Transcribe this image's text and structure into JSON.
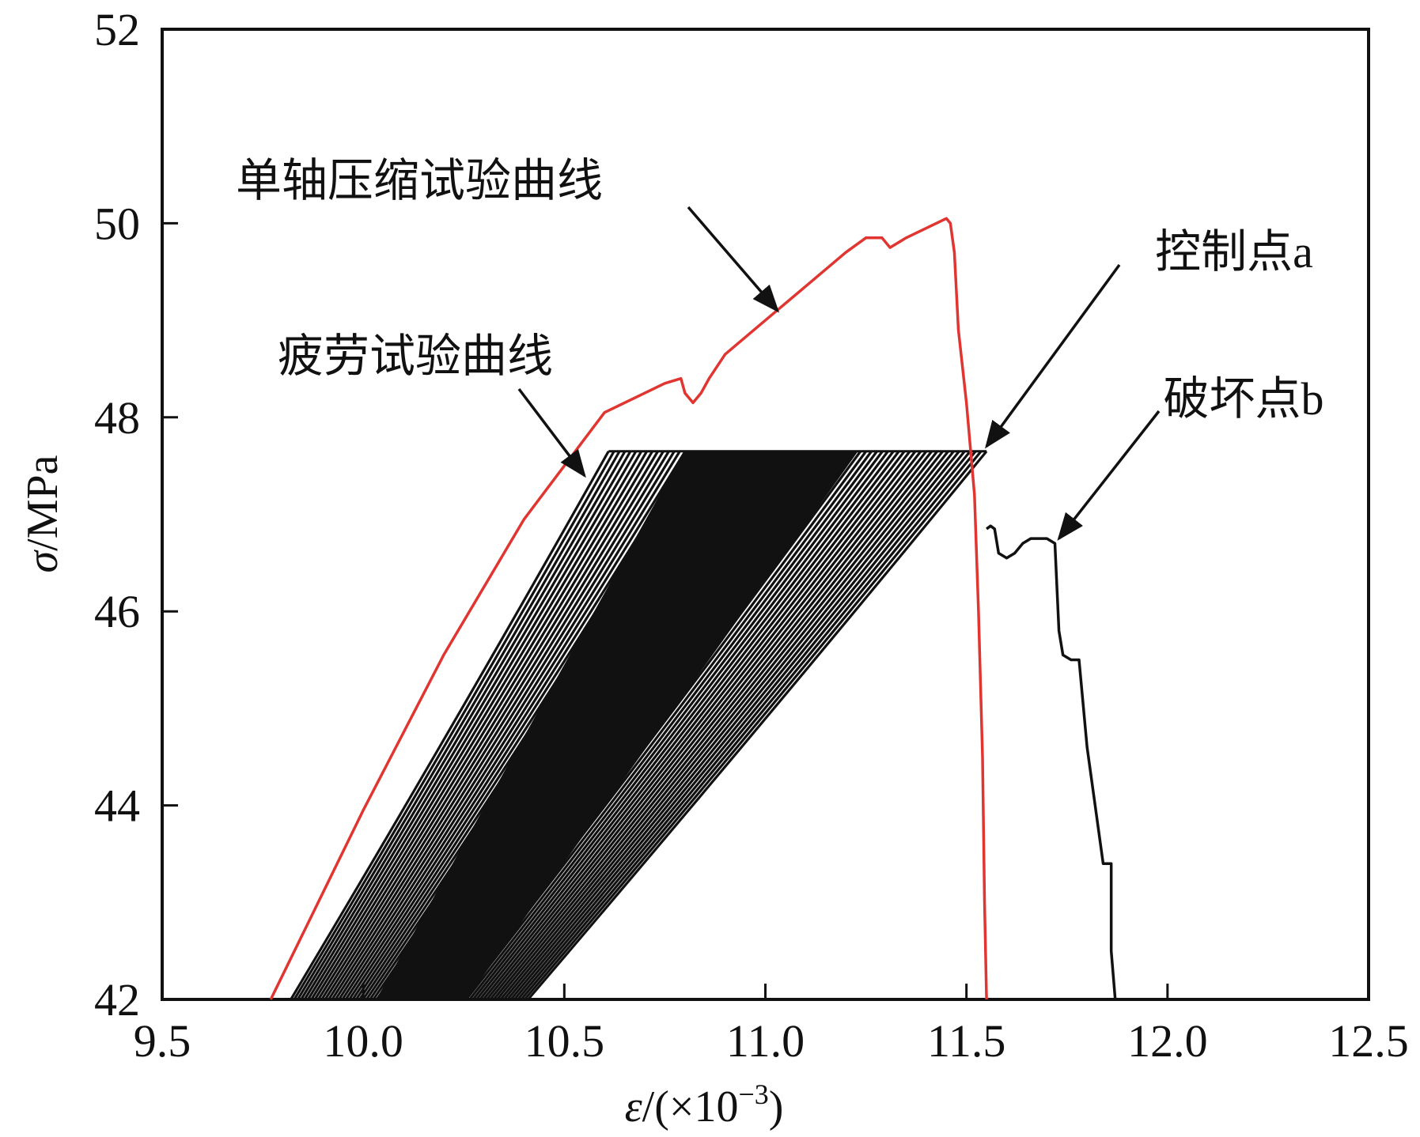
{
  "chart_data": {
    "type": "line",
    "title": "",
    "xlabel": {
      "italic": "ε",
      "rest": "/(×10",
      "sup": "−3",
      "close": ")"
    },
    "ylabel": {
      "italic": "σ",
      "rest": "/MPa"
    },
    "xlim": [
      9.5,
      12.5
    ],
    "ylim": [
      42,
      52
    ],
    "xticks": [
      9.5,
      10.0,
      10.5,
      11.0,
      11.5,
      12.0,
      12.5
    ],
    "xtick_labels": [
      "9.5",
      "10.0",
      "10.5",
      "11.0",
      "11.5",
      "12.0",
      "12.5"
    ],
    "yticks": [
      42,
      44,
      46,
      48,
      50,
      52
    ],
    "ytick_labels": [
      "42",
      "44",
      "46",
      "48",
      "50",
      "52"
    ],
    "grid": false,
    "series": [
      {
        "name": "单轴压缩试验曲线",
        "color": "#e03530",
        "x": [
          9.77,
          10.0,
          10.2,
          10.4,
          10.6,
          10.75,
          10.79,
          10.8,
          10.82,
          10.84,
          10.86,
          10.9,
          11.0,
          11.1,
          11.2,
          11.25,
          11.29,
          11.31,
          11.35,
          11.4,
          11.45,
          11.46,
          11.47,
          11.48,
          11.5,
          11.52,
          11.53,
          11.54,
          11.545,
          11.55
        ],
        "y": [
          42.0,
          43.95,
          45.55,
          46.95,
          48.05,
          48.35,
          48.4,
          48.25,
          48.15,
          48.25,
          48.4,
          48.65,
          49.0,
          49.35,
          49.7,
          49.85,
          49.85,
          49.75,
          49.85,
          49.95,
          50.05,
          50.0,
          49.7,
          48.9,
          48.15,
          47.2,
          46.0,
          44.5,
          43.0,
          42.0
        ]
      },
      {
        "name": "疲劳试验曲线",
        "color": "#111111",
        "cycles": {
          "peak_stress": 47.65,
          "min_stress": 42.0,
          "x_at_42_start": 9.82,
          "x_at_42_end": 10.41,
          "x_at_peak_start": 10.61,
          "x_at_peak_end": 11.55,
          "count": 70
        },
        "post_peak": {
          "x": [
            11.55,
            11.56,
            11.57,
            11.58,
            11.6,
            11.62,
            11.64,
            11.66,
            11.7,
            11.72,
            11.73,
            11.74,
            11.76,
            11.78,
            11.8,
            11.84,
            11.86,
            11.86,
            11.87
          ],
          "y": [
            46.85,
            46.88,
            46.85,
            46.6,
            46.55,
            46.6,
            46.7,
            46.75,
            46.75,
            46.7,
            45.8,
            45.55,
            45.5,
            45.5,
            44.6,
            43.4,
            43.4,
            42.5,
            42.0
          ]
        }
      }
    ],
    "annotations": [
      {
        "id": "uniaxial",
        "text": "单轴压缩试验曲线",
        "arrow_to": [
          11.03,
          49.1
        ]
      },
      {
        "id": "fatigue",
        "text": "疲劳试验曲线",
        "arrow_to": [
          10.55,
          47.4
        ]
      },
      {
        "id": "control",
        "text": "控制点a",
        "arrow_to": [
          11.55,
          47.7
        ]
      },
      {
        "id": "failure",
        "text": "破坏点b",
        "arrow_to": [
          11.73,
          46.75
        ]
      }
    ]
  }
}
